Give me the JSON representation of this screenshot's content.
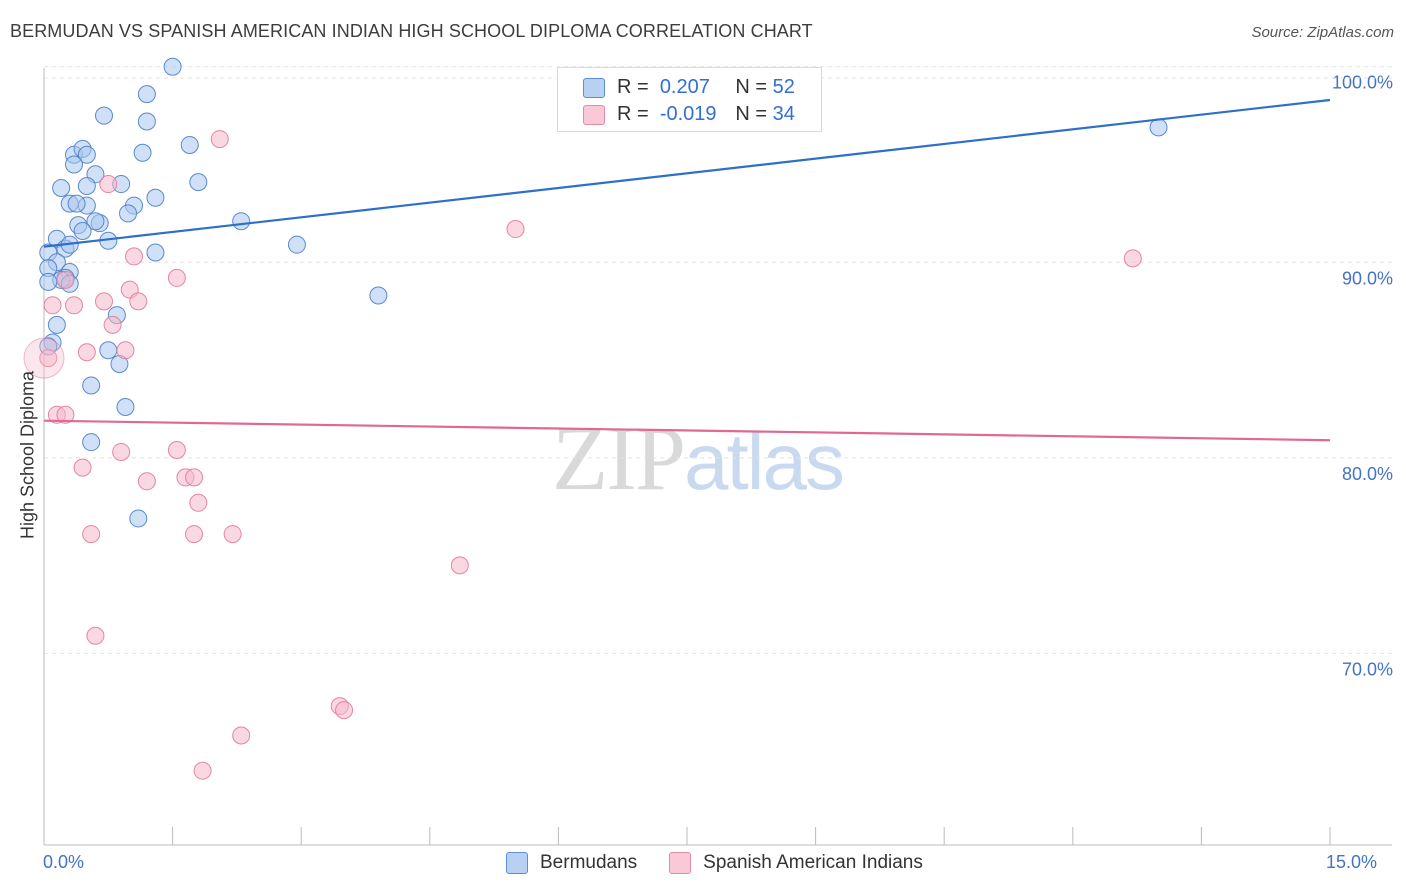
{
  "header": {
    "title": "BERMUDAN VS SPANISH AMERICAN INDIAN HIGH SCHOOL DIPLOMA CORRELATION CHART",
    "source": "Source: ZipAtlas.com"
  },
  "watermark": {
    "zip": "ZIP",
    "atlas": "atlas"
  },
  "legend": {
    "rows": [
      {
        "r_label": "R =",
        "r_value": "0.207",
        "n_label": "N =",
        "n_value": "52"
      },
      {
        "r_label": "R =",
        "r_value": "-0.019",
        "n_label": "N =",
        "n_value": "34"
      }
    ]
  },
  "bottom_legend": {
    "series1": "Bermudans",
    "series2": "Spanish American Indians"
  },
  "colors": {
    "series1_fill": "#a9c6ee",
    "series1_stroke": "#4a80c8",
    "series1_line": "#2d6fcc",
    "series2_fill": "#f5b8cb",
    "series2_stroke": "#e07a9c",
    "series2_line": "#e06891",
    "grid": "#e3e3e3",
    "axis_text": "#4472c4"
  },
  "chart_data": {
    "type": "scatter",
    "title": "BERMUDAN VS SPANISH AMERICAN INDIAN HIGH SCHOOL DIPLOMA CORRELATION CHART",
    "xlabel": "",
    "ylabel": "High School Diploma",
    "xlim": [
      0,
      15
    ],
    "ylim": [
      60.2,
      100.6
    ],
    "x_tick_labels": [
      "0.0%",
      "15.0%"
    ],
    "y_ticks": [
      70,
      80,
      90,
      100
    ],
    "y_tick_labels": [
      "70.0%",
      "80.0%",
      "90.0%",
      "100.0%"
    ],
    "grid": true,
    "series": [
      {
        "name": "Bermudans",
        "R": 0.207,
        "N": 52,
        "trend": {
          "x": [
            0,
            15
          ],
          "y": [
            90.8,
            98.3
          ]
        },
        "points": [
          [
            1.5,
            100.0
          ],
          [
            1.2,
            98.6
          ],
          [
            0.7,
            97.5
          ],
          [
            1.2,
            97.2
          ],
          [
            1.7,
            96.0
          ],
          [
            0.35,
            95.5
          ],
          [
            0.45,
            95.8
          ],
          [
            0.5,
            95.5
          ],
          [
            1.15,
            95.6
          ],
          [
            0.35,
            95.0
          ],
          [
            0.6,
            94.5
          ],
          [
            1.8,
            94.1
          ],
          [
            0.9,
            94.0
          ],
          [
            0.2,
            93.8
          ],
          [
            0.5,
            93.9
          ],
          [
            1.3,
            93.3
          ],
          [
            0.3,
            93.0
          ],
          [
            0.5,
            92.9
          ],
          [
            1.05,
            92.9
          ],
          [
            0.38,
            93.0
          ],
          [
            0.98,
            92.5
          ],
          [
            0.65,
            92.0
          ],
          [
            0.6,
            92.1
          ],
          [
            0.4,
            91.9
          ],
          [
            2.3,
            92.1
          ],
          [
            0.45,
            91.6
          ],
          [
            0.15,
            91.2
          ],
          [
            0.75,
            91.1
          ],
          [
            2.95,
            90.9
          ],
          [
            0.25,
            90.7
          ],
          [
            0.3,
            90.9
          ],
          [
            1.3,
            90.5
          ],
          [
            0.05,
            90.5
          ],
          [
            0.15,
            90.0
          ],
          [
            0.05,
            89.7
          ],
          [
            0.3,
            89.5
          ],
          [
            0.25,
            89.2
          ],
          [
            0.2,
            89.1
          ],
          [
            0.05,
            89.0
          ],
          [
            0.3,
            88.9
          ],
          [
            3.9,
            88.3
          ],
          [
            0.85,
            87.3
          ],
          [
            0.15,
            86.8
          ],
          [
            0.1,
            85.9
          ],
          [
            0.05,
            85.7
          ],
          [
            0.75,
            85.5
          ],
          [
            0.88,
            84.8
          ],
          [
            0.55,
            83.7
          ],
          [
            0.95,
            82.6
          ],
          [
            0.55,
            80.8
          ],
          [
            1.1,
            76.9
          ],
          [
            13.0,
            96.9
          ]
        ]
      },
      {
        "name": "Spanish American Indians",
        "R": -0.019,
        "N": 34,
        "trend": {
          "x": [
            0,
            15
          ],
          "y": [
            81.9,
            80.9
          ]
        },
        "points": [
          [
            2.05,
            96.3
          ],
          [
            0.75,
            94.0
          ],
          [
            5.5,
            91.7
          ],
          [
            1.05,
            90.3
          ],
          [
            12.7,
            90.2
          ],
          [
            1.55,
            89.2
          ],
          [
            0.25,
            89.1
          ],
          [
            1.0,
            88.6
          ],
          [
            0.7,
            88.0
          ],
          [
            1.1,
            88.0
          ],
          [
            0.1,
            87.8
          ],
          [
            0.35,
            87.8
          ],
          [
            0.8,
            86.8
          ],
          [
            0.95,
            85.5
          ],
          [
            0.5,
            85.4
          ],
          [
            0.05,
            85.1
          ],
          [
            0.15,
            82.2
          ],
          [
            0.25,
            82.2
          ],
          [
            0.9,
            80.3
          ],
          [
            1.55,
            80.4
          ],
          [
            0.45,
            79.5
          ],
          [
            1.2,
            78.8
          ],
          [
            1.65,
            79.0
          ],
          [
            1.75,
            79.0
          ],
          [
            1.8,
            77.7
          ],
          [
            0.55,
            76.1
          ],
          [
            1.75,
            76.1
          ],
          [
            2.2,
            76.1
          ],
          [
            4.85,
            74.5
          ],
          [
            0.6,
            70.9
          ],
          [
            3.45,
            67.3
          ],
          [
            3.5,
            67.1
          ],
          [
            2.3,
            65.8
          ],
          [
            1.85,
            64.0
          ]
        ]
      }
    ]
  }
}
